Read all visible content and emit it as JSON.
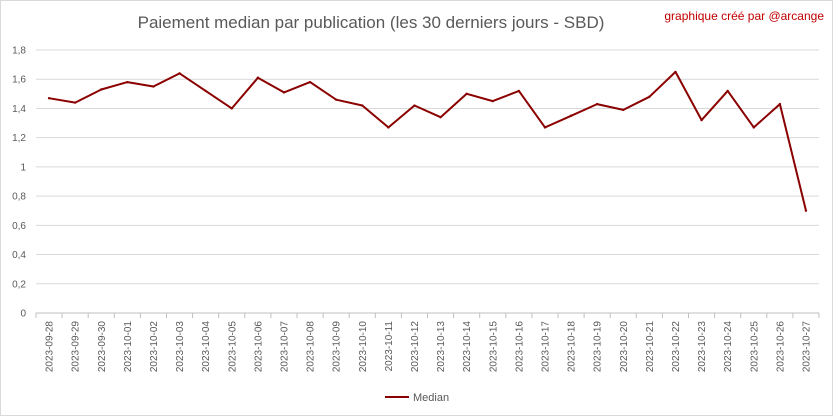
{
  "chart_data": {
    "type": "line",
    "title": "Paiement median par publication (les 30 derniers jours - SBD)",
    "credit": "graphique créé par @arcange",
    "xlabel": "",
    "ylabel": "",
    "ylim": [
      0,
      1.8
    ],
    "yticks": [
      "0",
      "0,2",
      "0,4",
      "0,6",
      "0,8",
      "1",
      "1,2",
      "1,4",
      "1,6",
      "1,8"
    ],
    "grid": true,
    "legend_position": "bottom",
    "categories": [
      "2023-09-28",
      "2023-09-29",
      "2023-09-30",
      "2023-10-01",
      "2023-10-02",
      "2023-10-03",
      "2023-10-04",
      "2023-10-05",
      "2023-10-06",
      "2023-10-07",
      "2023-10-08",
      "2023-10-09",
      "2023-10-10",
      "2023-10-11",
      "2023-10-12",
      "2023-10-13",
      "2023-10-14",
      "2023-10-15",
      "2023-10-16",
      "2023-10-17",
      "2023-10-18",
      "2023-10-19",
      "2023-10-20",
      "2023-10-21",
      "2023-10-22",
      "2023-10-23",
      "2023-10-24",
      "2023-10-25",
      "2023-10-26",
      "2023-10-27"
    ],
    "series": [
      {
        "name": "Median",
        "color": "#8b0000",
        "values": [
          1.47,
          1.44,
          1.53,
          1.58,
          1.55,
          1.64,
          1.52,
          1.4,
          1.61,
          1.51,
          1.58,
          1.46,
          1.42,
          1.27,
          1.42,
          1.34,
          1.5,
          1.45,
          1.52,
          1.27,
          1.35,
          1.43,
          1.39,
          1.48,
          1.65,
          1.32,
          1.52,
          1.27,
          1.43,
          0.7
        ]
      }
    ]
  }
}
